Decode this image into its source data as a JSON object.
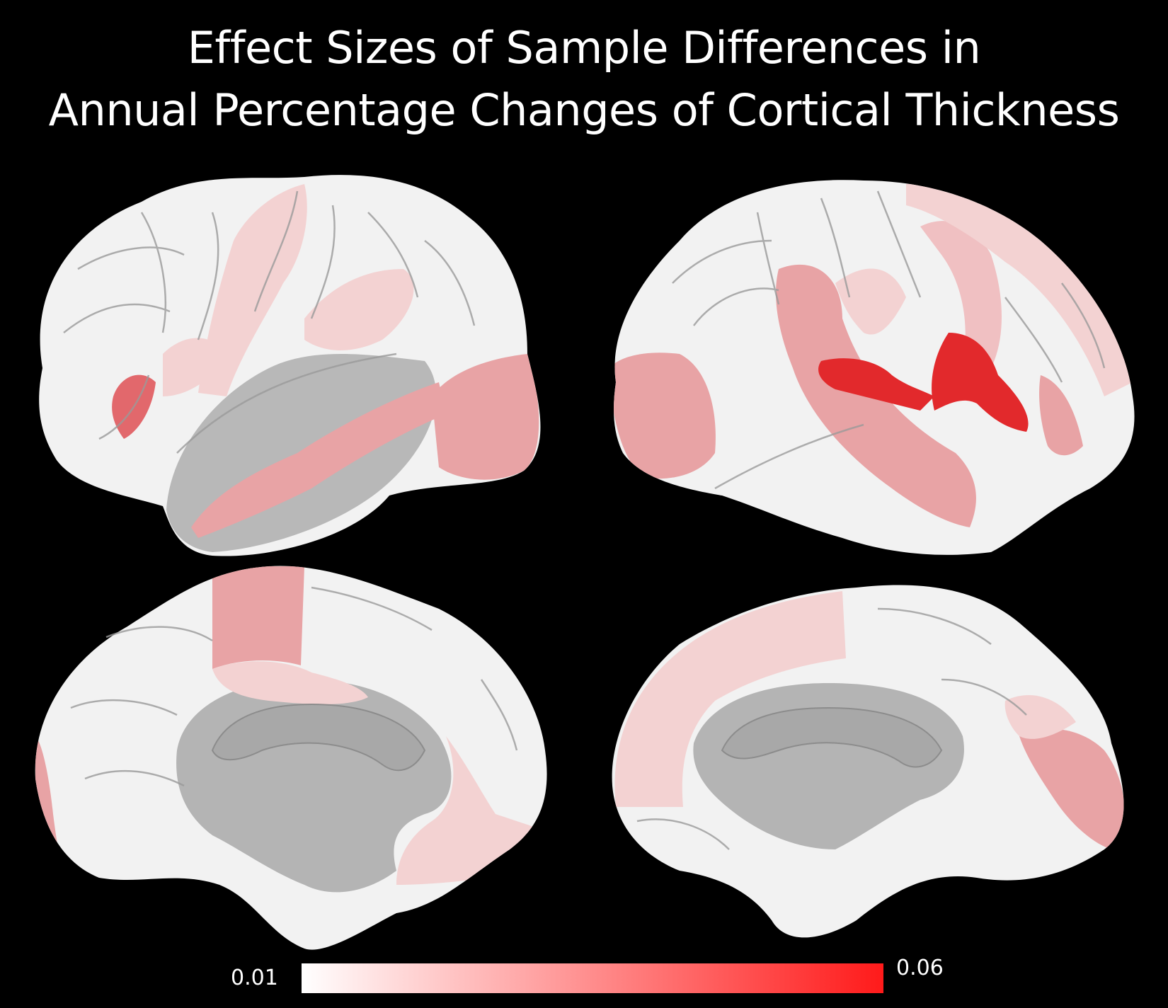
{
  "title": {
    "line1": "Effect Sizes of Sample Differences in",
    "line2": "Annual Percentage Changes of Cortical Thickness"
  },
  "colorbar": {
    "min_label": "0.01",
    "max_label": "0.06",
    "min_value": 0.01,
    "max_value": 0.06,
    "colors": {
      "low": "#ffffff",
      "high": "#ff1a1a"
    }
  },
  "colors": {
    "background": "#000000",
    "cortex_base": "#f2f2f2",
    "medial_wall": "#b4b4b4",
    "low_effect": "#f3d2d2",
    "mid_effect": "#e8a3a5",
    "high_effect": "#e2292c"
  }
}
